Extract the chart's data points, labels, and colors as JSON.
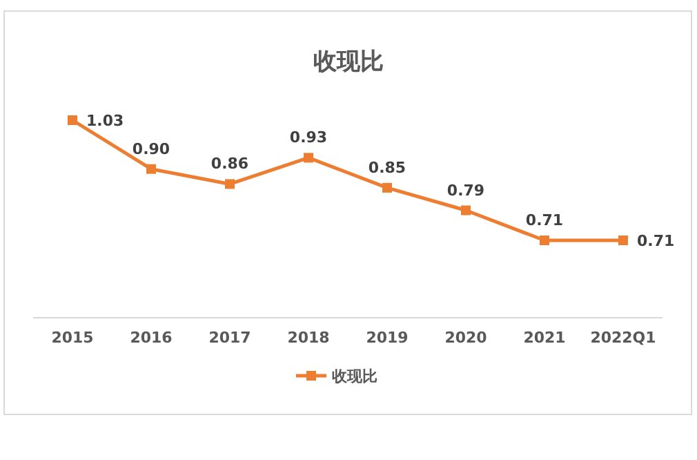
{
  "chart_data": {
    "type": "line",
    "title": "收现比",
    "categories": [
      "2015",
      "2016",
      "2017",
      "2018",
      "2019",
      "2020",
      "2021",
      "2022Q1"
    ],
    "series": [
      {
        "name": "收现比",
        "color": "#ed7d31",
        "values": [
          1.03,
          0.9,
          0.86,
          0.93,
          0.85,
          0.79,
          0.71,
          0.71
        ],
        "value_labels": [
          "1.03",
          "0.90",
          "0.86",
          "0.93",
          "0.85",
          "0.79",
          "0.71",
          "0.71"
        ]
      }
    ],
    "marker": "square",
    "line_style": "solid",
    "legend": "bottom",
    "grid": false,
    "relative": false
  }
}
